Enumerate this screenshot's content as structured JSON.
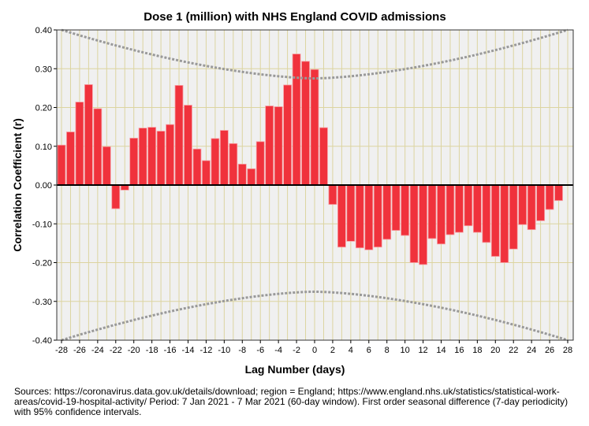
{
  "chart_data": {
    "type": "bar",
    "title": "Dose 1 (million) with NHS England COVID admissions",
    "xlabel": "Lag Number (days)",
    "ylabel": "Correlation Coefficient (r)",
    "ylim": [
      -0.4,
      0.4
    ],
    "xlim": [
      -28,
      28
    ],
    "yticks": [
      "0.40",
      "0.30",
      "0.20",
      "0.10",
      "0.00",
      "-0.10",
      "-0.20",
      "-0.30",
      "-0.40"
    ],
    "xticks": [
      "-28",
      "-26",
      "-24",
      "-22",
      "-20",
      "-18",
      "-16",
      "-14",
      "-12",
      "-10",
      "-8",
      "-6",
      "-4",
      "-2",
      "0",
      "2",
      "4",
      "6",
      "8",
      "10",
      "12",
      "14",
      "16",
      "18",
      "20",
      "22",
      "24",
      "26",
      "28"
    ],
    "grid": true,
    "lags": [
      -28,
      -27,
      -26,
      -25,
      -24,
      -23,
      -22,
      -21,
      -20,
      -19,
      -18,
      -17,
      -16,
      -15,
      -14,
      -13,
      -12,
      -11,
      -10,
      -9,
      -8,
      -7,
      -6,
      -5,
      -4,
      -3,
      -2,
      -1,
      0,
      1,
      2,
      3,
      4,
      5,
      6,
      7,
      8,
      9,
      10,
      11,
      12,
      13,
      14,
      15,
      16,
      17,
      18,
      19,
      20,
      21,
      22,
      23,
      24,
      25,
      26,
      27
    ],
    "values": [
      0.103,
      0.137,
      0.214,
      0.259,
      0.197,
      0.099,
      -0.061,
      -0.013,
      0.121,
      0.147,
      0.149,
      0.139,
      0.156,
      0.257,
      0.206,
      0.093,
      0.063,
      0.12,
      0.141,
      0.107,
      0.054,
      0.042,
      0.112,
      0.204,
      0.202,
      0.258,
      0.338,
      0.319,
      0.298,
      0.148,
      -0.05,
      -0.16,
      -0.145,
      -0.162,
      -0.167,
      -0.16,
      -0.14,
      -0.117,
      -0.13,
      -0.2,
      -0.205,
      -0.138,
      -0.152,
      -0.128,
      -0.122,
      -0.105,
      -0.122,
      -0.148,
      -0.184,
      -0.2,
      -0.165,
      -0.102,
      -0.115,
      -0.092,
      -0.063,
      -0.04
    ],
    "confidence_limit": {
      "at_lag0": 0.275,
      "at_lag28": 0.4,
      "level": "95%"
    },
    "bar_color": "#f0323c"
  },
  "sources": "Sources: https://coronavirus.data.gov.uk/details/download; region = England; https://www.england.nhs.uk/statistics/statistical-work-areas/covid-19-hospital-activity/ Period: 7 Jan 2021 - 7 Mar 2021 (60-day window). First order seasonal difference (7-day periodicity) with 95% confidence intervals."
}
